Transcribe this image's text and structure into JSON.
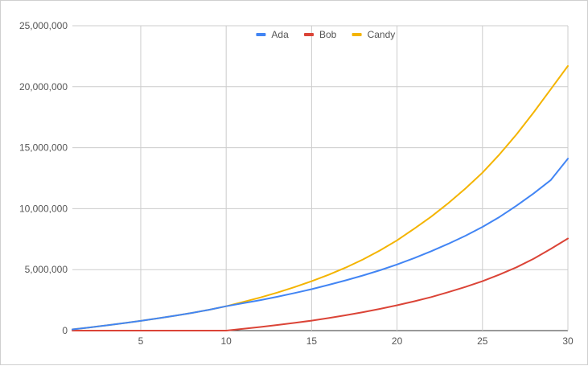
{
  "chart_data": {
    "type": "line",
    "title": "",
    "xlabel": "",
    "ylabel": "",
    "x": [
      1,
      2,
      3,
      4,
      5,
      6,
      7,
      8,
      9,
      10,
      11,
      12,
      13,
      14,
      15,
      16,
      17,
      18,
      19,
      20,
      21,
      22,
      23,
      24,
      25,
      26,
      27,
      28,
      29,
      30
    ],
    "xlim": [
      1,
      30
    ],
    "ylim": [
      0,
      25000000
    ],
    "x_ticks": [
      5,
      10,
      15,
      20,
      25,
      30
    ],
    "x_tick_labels": [
      "5",
      "10",
      "15",
      "20",
      "25",
      "30"
    ],
    "y_ticks": [
      0,
      5000000,
      10000000,
      15000000,
      20000000,
      25000000
    ],
    "y_tick_labels": [
      "0",
      "5,000,000",
      "10,000,000",
      "15,000,000",
      "20,000,000",
      "25,000,000"
    ],
    "grid": true,
    "legend_position": "top",
    "series": [
      {
        "name": "Ada",
        "color": "#4285f4",
        "values": [
          100000,
          260000,
          430000,
          610000,
          800000,
          1000000,
          1220000,
          1450000,
          1710000,
          2000000,
          2250000,
          2500000,
          2780000,
          3080000,
          3400000,
          3750000,
          4120000,
          4520000,
          4950000,
          5420000,
          5940000,
          6510000,
          7120000,
          7780000,
          8500000,
          9320000,
          10250000,
          11250000,
          12350000,
          14100000
        ]
      },
      {
        "name": "Bob",
        "color": "#db4437",
        "values": [
          0,
          0,
          0,
          0,
          0,
          0,
          0,
          0,
          0,
          0,
          150000,
          300000,
          460000,
          630000,
          820000,
          1030000,
          1260000,
          1510000,
          1780000,
          2080000,
          2400000,
          2750000,
          3150000,
          3580000,
          4050000,
          4600000,
          5200000,
          5900000,
          6700000,
          7550000
        ]
      },
      {
        "name": "Candy",
        "color": "#f4b400",
        "values": [
          100000,
          260000,
          430000,
          610000,
          800000,
          1000000,
          1220000,
          1450000,
          1710000,
          2000000,
          2350000,
          2720000,
          3120000,
          3570000,
          4050000,
          4580000,
          5170000,
          5830000,
          6570000,
          7400000,
          8350000,
          9350000,
          10450000,
          11650000,
          12950000,
          14450000,
          16100000,
          17900000,
          19800000,
          21700000
        ]
      }
    ]
  }
}
